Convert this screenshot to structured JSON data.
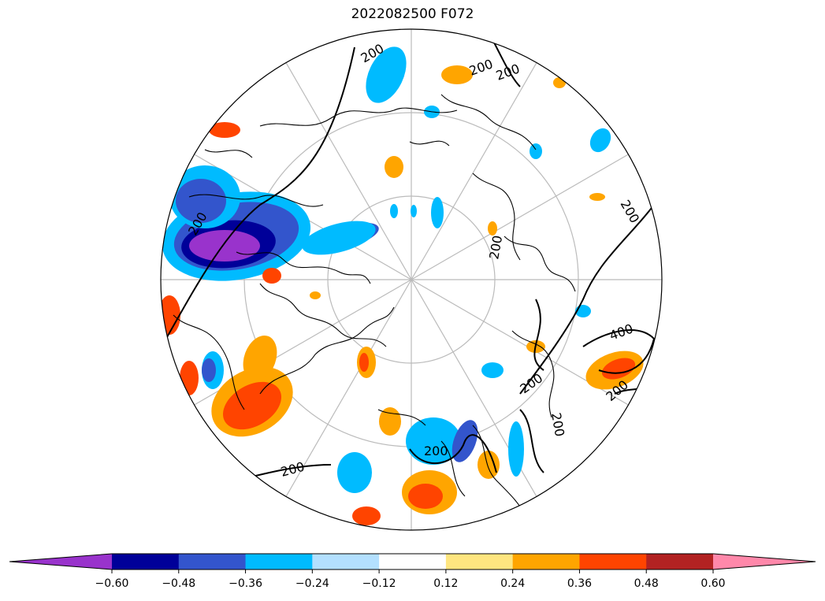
{
  "title": "2022082500 F072",
  "map": {
    "projection": "north polar stereographic",
    "contour_labels": [
      "200",
      "200",
      "200",
      "200",
      "200",
      "200",
      "200",
      "200",
      "200",
      "200",
      "200",
      "400"
    ]
  },
  "colorbar": {
    "extend": "both",
    "tick_labels": [
      "−0.60",
      "−0.48",
      "−0.36",
      "−0.24",
      "−0.12",
      "0.12",
      "0.24",
      "0.36",
      "0.48",
      "0.60"
    ],
    "colors": [
      "#9933cc",
      "#000099",
      "#3355cc",
      "#00bbff",
      "#b3e0ff",
      "#ffffff",
      "#ffe680",
      "#ffa500",
      "#ff4400",
      "#b22222",
      "#ff88aa"
    ]
  }
}
